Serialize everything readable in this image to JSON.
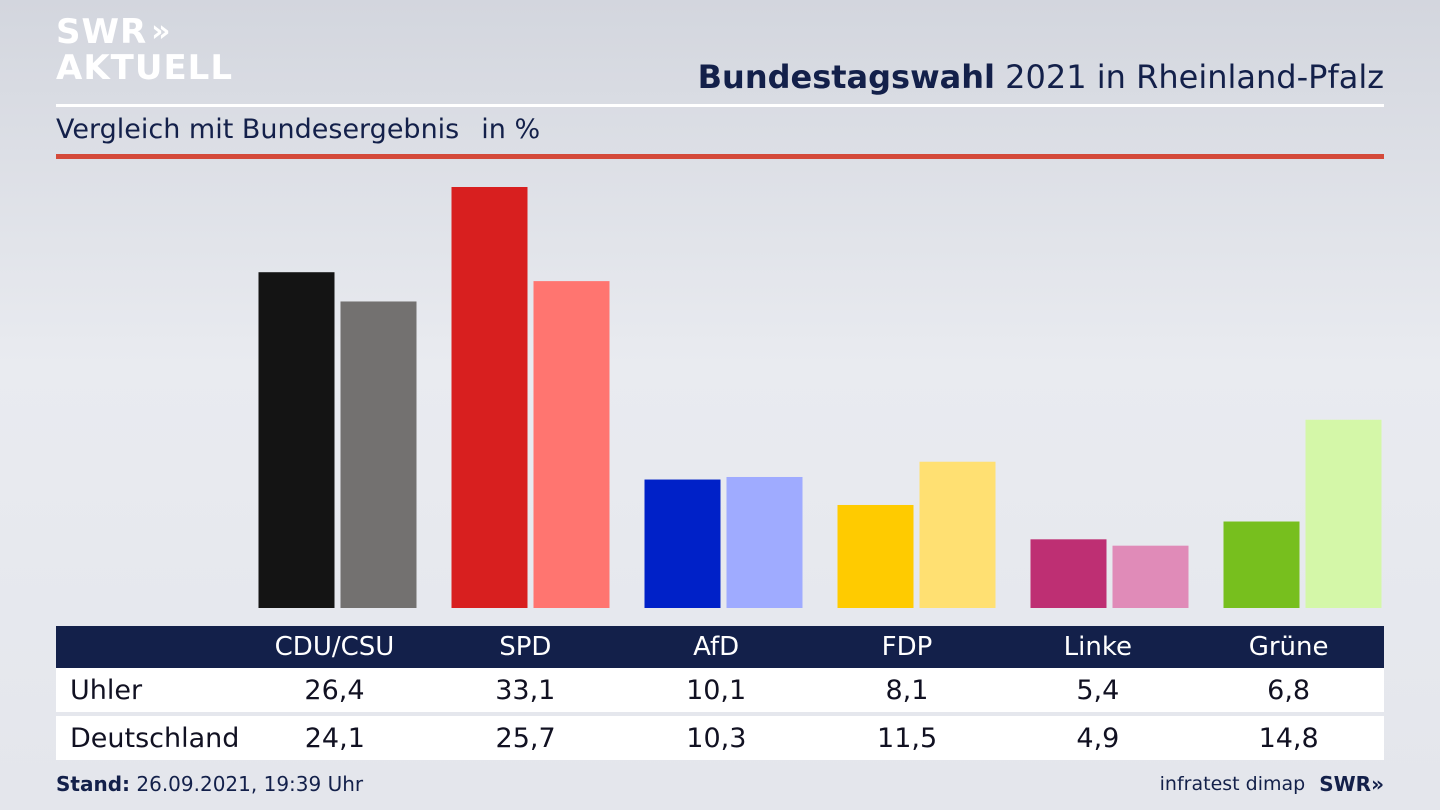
{
  "logo": {
    "line1": "SWR",
    "line2": "AKTUELL",
    "chevron": "»"
  },
  "header": {
    "title_bold": "Bundestagswahl",
    "title_rest": " 2021 in Rheinland-Pfalz",
    "subtitle": "Vergleich mit Bundesergebnis",
    "unit": "in %"
  },
  "colors": {
    "header_navy": "#13204a",
    "accent_red": "#d44a3a"
  },
  "chart_data": {
    "type": "bar",
    "categories": [
      "CDU/CSU",
      "SPD",
      "AfD",
      "FDP",
      "Linke",
      "Grüne"
    ],
    "series": [
      {
        "name": "Uhler",
        "values": [
          26.4,
          33.1,
          10.1,
          8.1,
          5.4,
          6.8
        ]
      },
      {
        "name": "Deutschland",
        "values": [
          24.1,
          25.7,
          10.3,
          11.5,
          4.9,
          14.8
        ]
      }
    ],
    "ylim": [
      0,
      33.1
    ],
    "bar_colors": [
      [
        "#141414",
        "#737170"
      ],
      [
        "#d81f1f",
        "#ff7570"
      ],
      [
        "#0021c8",
        "#9fabff"
      ],
      [
        "#ffcb00",
        "#ffe072"
      ],
      [
        "#be2f73",
        "#e08bb8"
      ],
      [
        "#77bf1e",
        "#d4f7a8"
      ]
    ]
  },
  "table": {
    "row_labels": [
      "Uhler",
      "Deutschland"
    ],
    "values": [
      [
        "26,4",
        "33,1",
        "10,1",
        "8,1",
        "5,4",
        "6,8"
      ],
      [
        "24,1",
        "25,7",
        "10,3",
        "11,5",
        "4,9",
        "14,8"
      ]
    ]
  },
  "footer": {
    "stand_label": "Stand:",
    "stand_value": " 26.09.2021, 19:39 Uhr",
    "source": "infratest dimap",
    "brand": "SWR",
    "brand_chevron": "»"
  }
}
